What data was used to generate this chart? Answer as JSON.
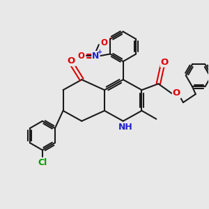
{
  "background_color": "#e8e8e8",
  "bond_color": "#1a1a1a",
  "N_color": "#2020cc",
  "O_color": "#dd0000",
  "Cl_color": "#009900",
  "line_width": 1.5,
  "font_size": 8.5,
  "figsize": [
    3.0,
    3.0
  ],
  "dpi": 100,
  "xlim": [
    0,
    10
  ],
  "ylim": [
    0,
    10
  ]
}
